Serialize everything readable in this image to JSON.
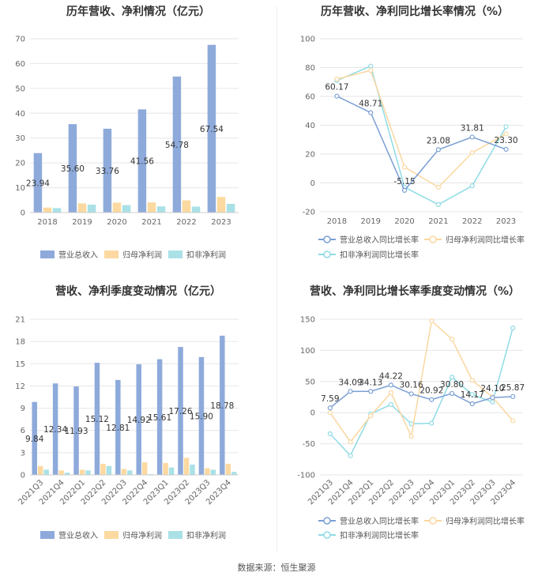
{
  "footer": "数据来源：恒生聚源",
  "colors": {
    "revenue": "#8eaadb",
    "net_profit": "#fcd9a0",
    "deducted_profit": "#a9e1e6",
    "line_revenue": "#7b9fd4",
    "line_net": "#fad7a0",
    "line_deducted": "#8fdbe5"
  },
  "chart_data": [
    {
      "type": "bar",
      "title": "历年营收、净利情况（亿元）",
      "categories": [
        "2018",
        "2019",
        "2020",
        "2021",
        "2022",
        "2023"
      ],
      "ylim": [
        0,
        70
      ],
      "yticks": [
        0,
        10,
        20,
        30,
        40,
        50,
        60,
        70
      ],
      "series": [
        {
          "name": "营业总收入",
          "values": [
            23.94,
            35.6,
            33.76,
            41.56,
            54.78,
            67.54
          ],
          "labels": [
            "23.94",
            "35.60",
            "33.76",
            "41.56",
            "54.78",
            "67.54"
          ]
        },
        {
          "name": "归母净利润",
          "values": [
            2.0,
            3.7,
            4.0,
            4.1,
            4.9,
            6.3
          ]
        },
        {
          "name": "扣非净利润",
          "values": [
            1.8,
            3.2,
            3.0,
            2.5,
            2.4,
            3.5
          ]
        }
      ],
      "legend": "bottom"
    },
    {
      "type": "line",
      "title": "历年营收、净利同比增长率情况（%）",
      "categories": [
        "2018",
        "2019",
        "2020",
        "2021",
        "2022",
        "2023"
      ],
      "ylim": [
        -20,
        100
      ],
      "yticks": [
        -20,
        0,
        20,
        40,
        60,
        80,
        100
      ],
      "series": [
        {
          "name": "营业总收入同比增长率",
          "values": [
            60.17,
            48.71,
            -5.15,
            23.08,
            31.81,
            23.3
          ],
          "labels": [
            "60.17",
            "48.71",
            "-5.15",
            "23.08",
            "31.81",
            "23.30"
          ]
        },
        {
          "name": "归母净利润同比增长率",
          "values": [
            72,
            78,
            11,
            -3,
            21,
            34
          ]
        },
        {
          "name": "扣非净利润同比增长率",
          "values": [
            71,
            81,
            -3,
            -15,
            -2,
            39
          ]
        }
      ],
      "legend": "bottom"
    },
    {
      "type": "bar",
      "title": "营收、净利季度变动情况（亿元）",
      "categories": [
        "2021Q3",
        "2021Q4",
        "2022Q1",
        "2022Q2",
        "2022Q3",
        "2022Q4",
        "2023Q1",
        "2023Q2",
        "2023Q3",
        "2023Q4"
      ],
      "ylim": [
        0,
        21
      ],
      "yticks": [
        0,
        3,
        6,
        9,
        12,
        15,
        18,
        21
      ],
      "series": [
        {
          "name": "营业总收入",
          "values": [
            9.84,
            12.34,
            11.93,
            15.12,
            12.81,
            14.92,
            15.61,
            17.26,
            15.9,
            18.78
          ],
          "labels": [
            "9.84",
            "12.34",
            "11.93",
            "15.12",
            "12.81",
            "14.92",
            "15.61",
            "17.26",
            "15.90",
            "18.78"
          ]
        },
        {
          "name": "归母净利润",
          "values": [
            1.2,
            0.6,
            0.7,
            1.5,
            0.8,
            1.7,
            1.6,
            2.3,
            0.9,
            1.5
          ]
        },
        {
          "name": "扣非净利润",
          "values": [
            0.7,
            0.3,
            0.6,
            1.2,
            0.6,
            0.1,
            1.0,
            1.4,
            0.7,
            0.4
          ]
        }
      ],
      "legend": "bottom"
    },
    {
      "type": "line",
      "title": "营收、净利同比增长率季度变动情况（%）",
      "categories": [
        "2021Q3",
        "2021Q4",
        "2022Q1",
        "2022Q2",
        "2022Q3",
        "2022Q4",
        "2023Q1",
        "2023Q2",
        "2023Q3",
        "2023Q4"
      ],
      "ylim": [
        -100,
        150
      ],
      "yticks": [
        -100,
        -50,
        0,
        50,
        100,
        150
      ],
      "series": [
        {
          "name": "营业总收入同比增长率",
          "values": [
            7.59,
            34.09,
            34.13,
            44.22,
            30.16,
            20.92,
            30.8,
            14.17,
            24.1,
            25.87
          ],
          "labels": [
            "7.59",
            "34.09",
            "34.13",
            "44.22",
            "30.16",
            "20.92",
            "30.80",
            "14.17",
            "24.10",
            "25.87"
          ]
        },
        {
          "name": "归母净利润同比增长率",
          "values": [
            0,
            -47,
            -5,
            32,
            -38,
            147,
            118,
            52,
            25,
            -13
          ]
        },
        {
          "name": "扣非净利润同比增长率",
          "values": [
            -34,
            -69,
            -2,
            13,
            -18,
            -17,
            57,
            29,
            17,
            136
          ]
        }
      ],
      "legend": "bottom"
    }
  ]
}
